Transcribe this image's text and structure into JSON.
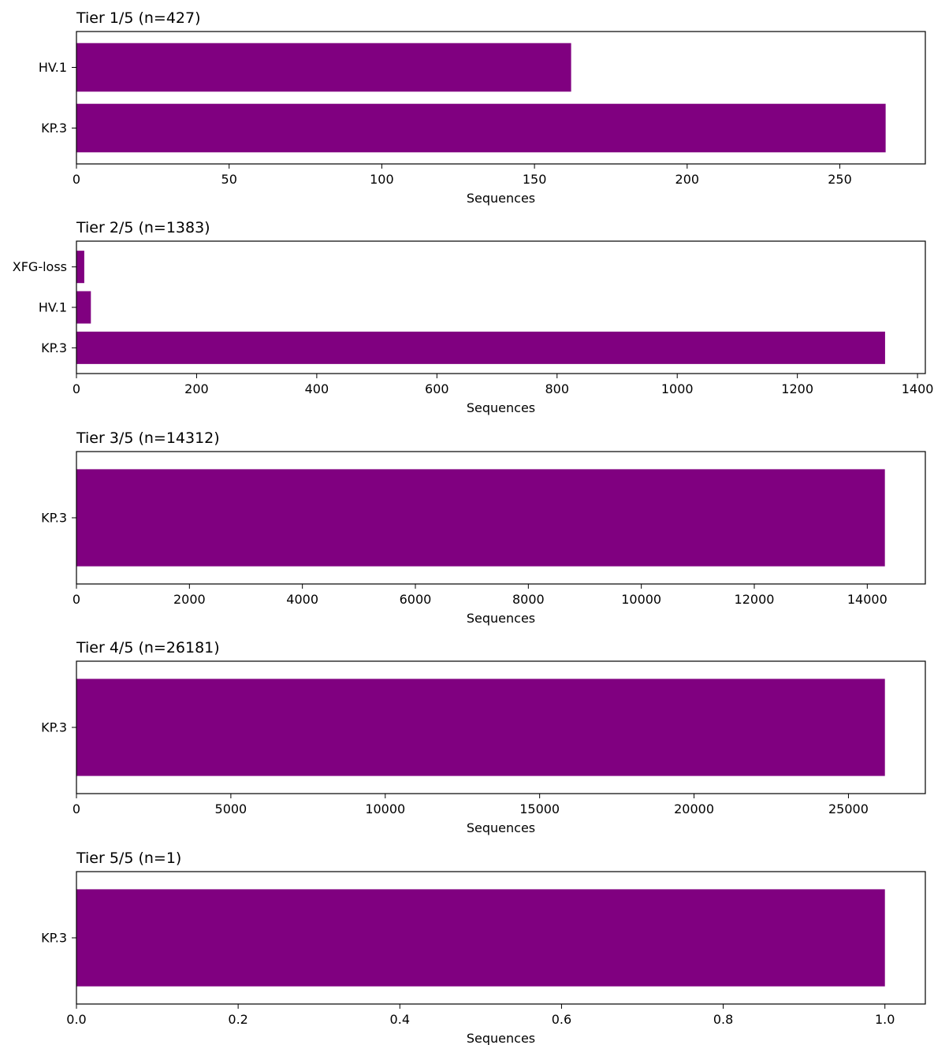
{
  "colors": {
    "bar": "#800080",
    "axis": "#000000",
    "background": "#ffffff"
  },
  "chart_data": [
    {
      "type": "bar",
      "orientation": "horizontal",
      "title": "Tier 1/5 (n=427)",
      "xlabel": "Sequences",
      "categories": [
        "HV.1",
        "KP.3"
      ],
      "values": [
        162,
        265
      ],
      "xlim": [
        0,
        278
      ],
      "xticks": [
        0,
        50,
        100,
        150,
        200,
        250
      ],
      "xtick_labels": [
        "0",
        "50",
        "100",
        "150",
        "200",
        "250"
      ]
    },
    {
      "type": "bar",
      "orientation": "horizontal",
      "title": "Tier 2/5 (n=1383)",
      "xlabel": "Sequences",
      "categories": [
        "XFG-loss",
        "HV.1",
        "KP.3"
      ],
      "values": [
        13,
        24,
        1346
      ],
      "xlim": [
        0,
        1413
      ],
      "xticks": [
        0,
        200,
        400,
        600,
        800,
        1000,
        1200,
        1400
      ],
      "xtick_labels": [
        "0",
        "200",
        "400",
        "600",
        "800",
        "1000",
        "1200",
        "1400"
      ]
    },
    {
      "type": "bar",
      "orientation": "horizontal",
      "title": "Tier 3/5 (n=14312)",
      "xlabel": "Sequences",
      "categories": [
        "KP.3"
      ],
      "values": [
        14312
      ],
      "xlim": [
        0,
        15028
      ],
      "xticks": [
        0,
        2000,
        4000,
        6000,
        8000,
        10000,
        12000,
        14000
      ],
      "xtick_labels": [
        "0",
        "2000",
        "4000",
        "6000",
        "8000",
        "10000",
        "12000",
        "14000"
      ]
    },
    {
      "type": "bar",
      "orientation": "horizontal",
      "title": "Tier 4/5 (n=26181)",
      "xlabel": "Sequences",
      "categories": [
        "KP.3"
      ],
      "values": [
        26181
      ],
      "xlim": [
        0,
        27490
      ],
      "xticks": [
        0,
        5000,
        10000,
        15000,
        20000,
        25000
      ],
      "xtick_labels": [
        "0",
        "5000",
        "10000",
        "15000",
        "20000",
        "25000"
      ]
    },
    {
      "type": "bar",
      "orientation": "horizontal",
      "title": "Tier 5/5 (n=1)",
      "xlabel": "Sequences",
      "categories": [
        "KP.3"
      ],
      "values": [
        1
      ],
      "xlim": [
        0,
        1.05
      ],
      "xticks": [
        0.0,
        0.2,
        0.4,
        0.6,
        0.8,
        1.0
      ],
      "xtick_labels": [
        "0.0",
        "0.2",
        "0.4",
        "0.6",
        "0.8",
        "1.0"
      ]
    }
  ]
}
